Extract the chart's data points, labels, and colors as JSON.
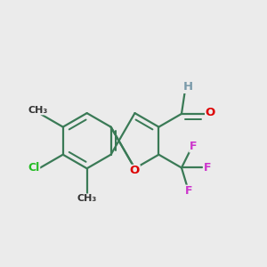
{
  "background_color": "#EBEBEB",
  "bond_color": "#3a7a56",
  "bond_width": 1.6,
  "dbo": 0.018,
  "figsize": [
    3.0,
    3.0
  ],
  "dpi": 100,
  "colors": {
    "O": "#dd0000",
    "Cl": "#22bb22",
    "F": "#cc33cc",
    "H": "#7a9aaa",
    "C": "#3a7a56"
  }
}
